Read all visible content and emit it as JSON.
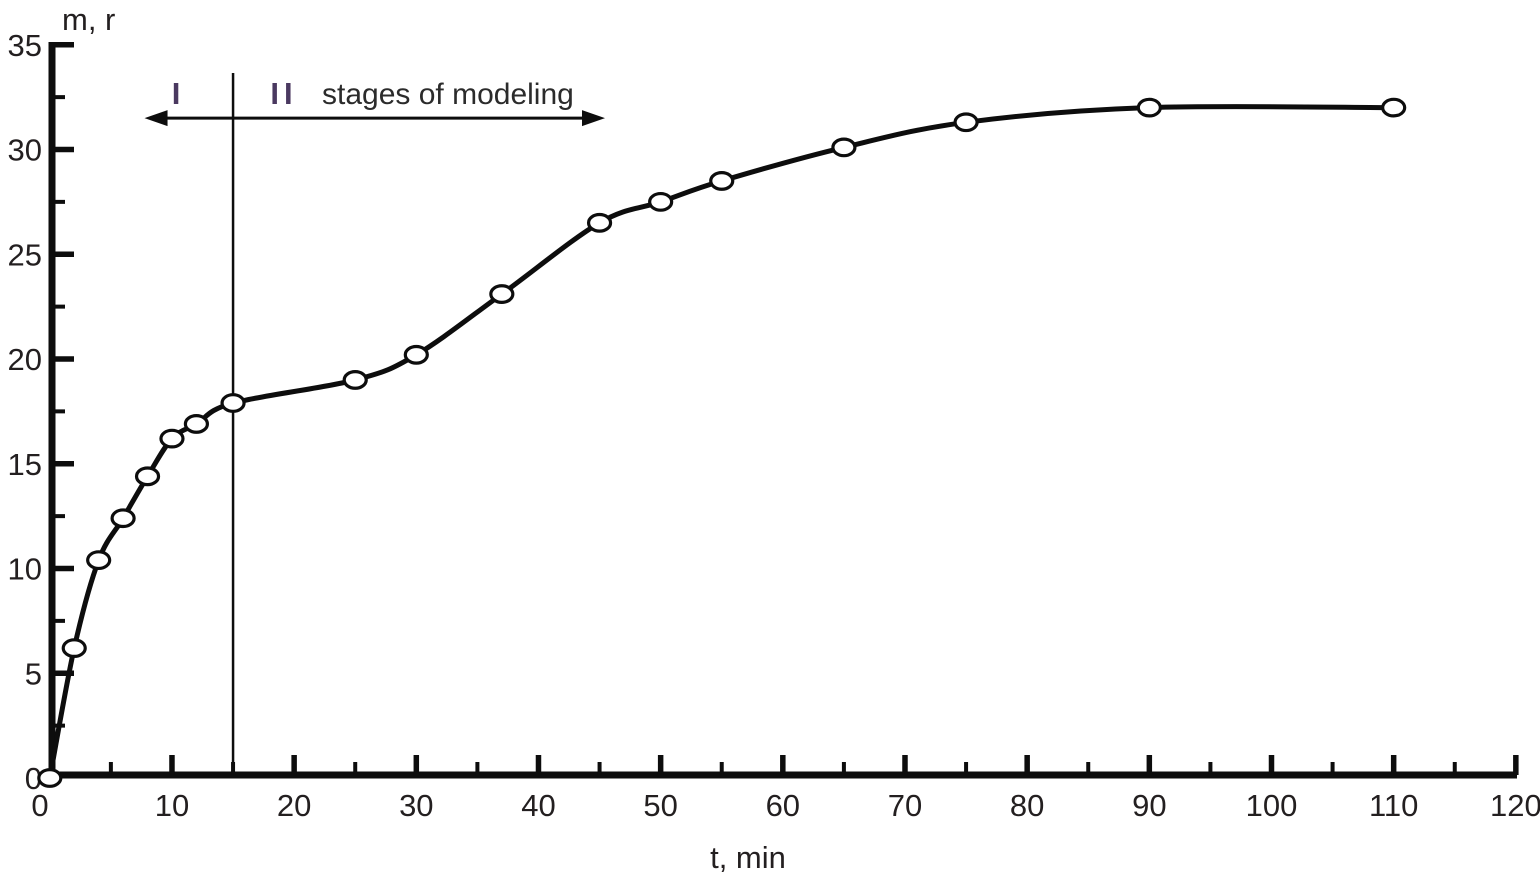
{
  "chart_data": {
    "type": "line",
    "title": "",
    "xlabel": "t, min",
    "ylabel": "m, r",
    "x": [
      0,
      2,
      4,
      6,
      8,
      10,
      12,
      15,
      25,
      30,
      37,
      45,
      50,
      55,
      65,
      75,
      90,
      110
    ],
    "y": [
      0,
      6.2,
      10.4,
      12.4,
      14.4,
      16.2,
      16.9,
      17.9,
      19.0,
      20.2,
      23.1,
      26.5,
      27.5,
      28.5,
      30.1,
      31.3,
      32.0,
      32.0
    ],
    "xlim": [
      0,
      120
    ],
    "ylim": [
      0,
      35
    ],
    "x_ticks": [
      0,
      10,
      20,
      30,
      40,
      50,
      60,
      70,
      80,
      90,
      100,
      110,
      120
    ],
    "x_minor_step": 5,
    "y_ticks": [
      0,
      5,
      10,
      15,
      20,
      25,
      30,
      35
    ],
    "y_minor_step": 2.5,
    "grid": false,
    "legend": "none",
    "marker": "open-circle",
    "annotations": {
      "stage1_label": "I",
      "stage2_label": "II",
      "stages_text": "stages of modeling",
      "stage_divider_x": 15,
      "arrow_x_range": [
        8,
        45.2
      ],
      "arrow_y": 31.5,
      "labels_y": 32.8
    },
    "colors": {
      "line": "#0d0d0d",
      "marker_fill": "#ffffff",
      "axis": "#0d0d0d",
      "text": "#231f20",
      "stage_label": "#4a3960"
    }
  }
}
